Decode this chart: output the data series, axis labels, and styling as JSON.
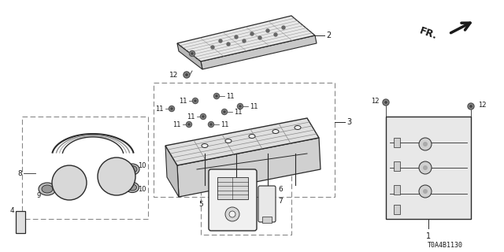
{
  "bg_color": "#ffffff",
  "diagram_id": "T0A4B1130",
  "line_color": "#2a2a2a",
  "light_gray": "#999999",
  "dark_gray": "#444444",
  "text_color": "#1a1a1a",
  "part_fill": "#f0f0f0",
  "part_fill_dark": "#d8d8d8",
  "figsize": [
    6.4,
    3.2
  ],
  "dpi": 100
}
